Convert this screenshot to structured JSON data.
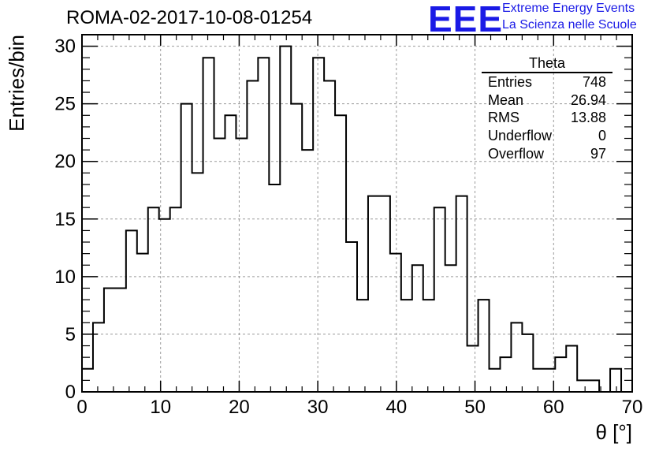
{
  "title": "ROMA-02-2017-10-08-01254",
  "logo": {
    "mark": "EEE",
    "line1": "Extreme Energy Events",
    "line2": "La Scienza nelle Scuole",
    "color": "#1a1ae6"
  },
  "stats": {
    "title": "Theta",
    "rows": [
      {
        "label": "Entries",
        "value": "748"
      },
      {
        "label": "Mean",
        "value": "26.94"
      },
      {
        "label": "RMS",
        "value": "13.88"
      },
      {
        "label": "Underflow",
        "value": "0"
      },
      {
        "label": "Overflow",
        "value": "97"
      }
    ]
  },
  "chart_data": {
    "type": "histogram",
    "xlabel": "θ [°]",
    "ylabel": "Entries/bin",
    "xlim": [
      0,
      70
    ],
    "ylim": [
      0,
      31
    ],
    "xticks": [
      "0",
      "10",
      "20",
      "30",
      "40",
      "50",
      "60",
      "70"
    ],
    "yticks": [
      "0",
      "5",
      "10",
      "15",
      "20",
      "25",
      "30"
    ],
    "bin_edges_start": 0,
    "bin_width": 1.4,
    "values": [
      2,
      6,
      9,
      9,
      14,
      12,
      16,
      15,
      16,
      25,
      19,
      29,
      22,
      24,
      22,
      27,
      29,
      18,
      30,
      25,
      21,
      29,
      27,
      24,
      13,
      8,
      17,
      17,
      12,
      8,
      11,
      8,
      16,
      11,
      17,
      4,
      8,
      2,
      3,
      6,
      5,
      2,
      2,
      3,
      4,
      1,
      1,
      0,
      2,
      0
    ],
    "grid": true,
    "line_color": "#000000"
  }
}
